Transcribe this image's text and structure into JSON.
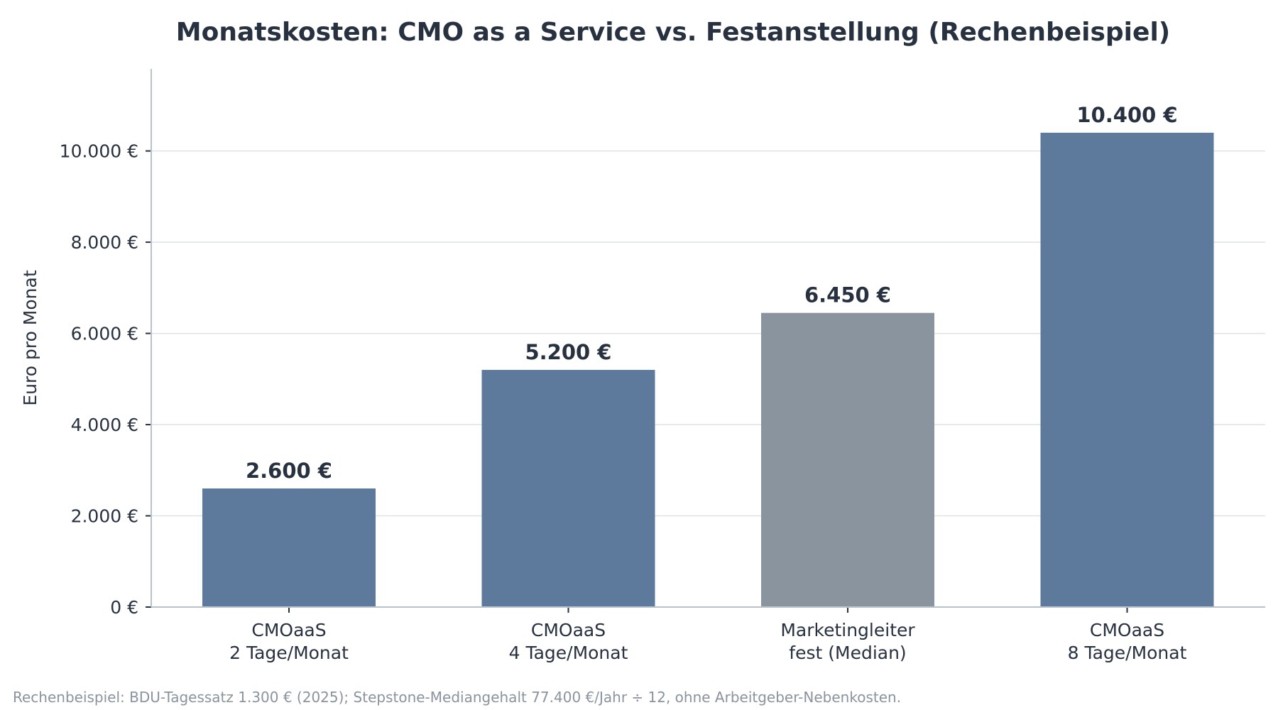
{
  "chart_data": {
    "type": "bar",
    "title": "Monatskosten: CMO as a Service vs. Festanstellung (Rechenbeispiel)",
    "ylabel": "Euro pro Monat",
    "xlabel": "",
    "ylim": [
      0,
      11800
    ],
    "yticks": [
      0,
      2000,
      4000,
      6000,
      8000,
      10000
    ],
    "ytick_labels": [
      "0 €",
      "2.000 €",
      "4.000 €",
      "6.000 €",
      "8.000 €",
      "10.000 €"
    ],
    "grid": true,
    "categories": [
      [
        "CMOaaS",
        "2 Tage/Monat"
      ],
      [
        "CMOaaS",
        "4 Tage/Monat"
      ],
      [
        "Marketingleiter",
        "fest (Median)"
      ],
      [
        "CMOaaS",
        "8 Tage/Monat"
      ]
    ],
    "values": [
      2600,
      5200,
      6450,
      10400
    ],
    "value_labels": [
      "2.600 €",
      "5.200 €",
      "6.450 €",
      "10.400 €"
    ],
    "colors": [
      "#5d7a9c",
      "#5d7a9c",
      "#8a949f",
      "#5d7a9c"
    ],
    "footnote": "Rechenbeispiel: BDU-Tagessatz 1.300 € (2025); Stepstone-Mediangehalt 77.400 €/Jahr ÷ 12, ohne Arbeitgeber-Nebenkosten."
  }
}
